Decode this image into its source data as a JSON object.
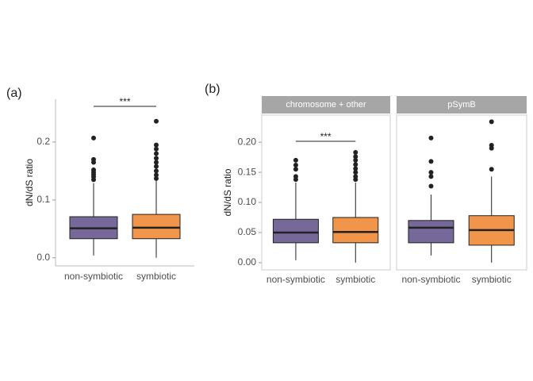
{
  "chart_data": [
    {
      "type": "box",
      "panel_label": "(a)",
      "ylabel": "dN/dS ratio",
      "categories": [
        "non-symbiotic",
        "symbiotic"
      ],
      "colors": [
        "#76699a",
        "#f0954a"
      ],
      "ylim": [
        -0.014,
        0.274
      ],
      "yticks": [
        {
          "value": 0,
          "label": "0.0"
        },
        0.1,
        0.2
      ],
      "annotation": "***",
      "boxes": [
        {
          "min": 0.004,
          "q1": 0.033,
          "median": 0.051,
          "q3": 0.071,
          "max": 0.129,
          "outliers": [
            0.207,
            0.17,
            0.165,
            0.152,
            0.148,
            0.144,
            0.14,
            0.135
          ]
        },
        {
          "min": 0.0,
          "q1": 0.033,
          "median": 0.052,
          "q3": 0.075,
          "max": 0.134,
          "outliers": [
            0.236,
            0.195,
            0.188,
            0.18,
            0.172,
            0.165,
            0.158,
            0.15,
            0.143,
            0.137
          ]
        }
      ]
    },
    {
      "type": "box",
      "panel_label": "(b)",
      "ylabel": "dN/dS ratio",
      "categories": [
        "non-symbiotic",
        "symbiotic"
      ],
      "colors": [
        "#76699a",
        "#f0954a"
      ],
      "ylim": [
        -0.012,
        0.245
      ],
      "yticks": [
        {
          "value": 0,
          "label": "0.00"
        },
        {
          "value": 0.05,
          "label": "0.05"
        },
        {
          "value": 0.1,
          "label": "0.10"
        },
        {
          "value": 0.15,
          "label": "0.15"
        },
        {
          "value": 0.2,
          "label": "0.20"
        }
      ],
      "facets": [
        {
          "title": "chromosome + other",
          "annotation": "***",
          "boxes": [
            {
              "min": 0.004,
              "q1": 0.033,
              "median": 0.05,
              "q3": 0.072,
              "max": 0.133,
              "outliers": [
                0.17,
                0.162,
                0.155,
                0.143,
                0.138
              ]
            },
            {
              "min": 0.0,
              "q1": 0.033,
              "median": 0.051,
              "q3": 0.075,
              "max": 0.133,
              "outliers": [
                0.183,
                0.176,
                0.17,
                0.163,
                0.156,
                0.15,
                0.143,
                0.138
              ]
            }
          ]
        },
        {
          "title": "pSymB",
          "boxes": [
            {
              "min": 0.012,
              "q1": 0.033,
              "median": 0.058,
              "q3": 0.07,
              "max": 0.113,
              "outliers": [
                0.207,
                0.168,
                0.15,
                0.143,
                0.127
              ]
            },
            {
              "min": 0.0,
              "q1": 0.029,
              "median": 0.054,
              "q3": 0.078,
              "max": 0.143,
              "outliers": [
                0.234,
                0.195,
                0.19,
                0.155
              ]
            }
          ]
        }
      ]
    }
  ]
}
